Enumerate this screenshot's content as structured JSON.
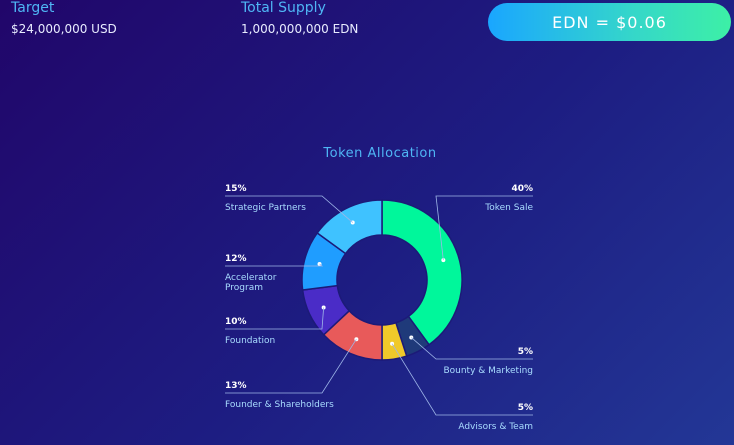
{
  "header": {
    "target_label": "Target",
    "target_value": "$24,000,000 USD",
    "supply_label": "Total Supply",
    "supply_value": "1,000,000,000 EDN",
    "price_button": "EDN = $0.06"
  },
  "chart_data": {
    "type": "pie",
    "donut": true,
    "title": "Token Allocation",
    "slices": [
      {
        "label": "Token Sale",
        "percent_label": "40%",
        "value": 40,
        "color": "#00f79b",
        "side": "right"
      },
      {
        "label": "Bounty & Marketing",
        "percent_label": "5%",
        "value": 5,
        "color": "#1f3a7a",
        "side": "right"
      },
      {
        "label": "Advisors & Team",
        "percent_label": "5%",
        "value": 5,
        "color": "#f0c92a",
        "side": "right"
      },
      {
        "label": "Founder & Shareholders",
        "percent_label": "13%",
        "value": 13,
        "color": "#e85a5a",
        "side": "left"
      },
      {
        "label": "Foundation",
        "percent_label": "10%",
        "value": 10,
        "color": "#4a2cc7",
        "side": "left"
      },
      {
        "label": "Accelerator Program",
        "label_lines": [
          "Accelerator",
          "Program"
        ],
        "percent_label": "12%",
        "value": 12,
        "color": "#1f9dff",
        "side": "left"
      },
      {
        "label": "Strategic Partners",
        "percent_label": "15%",
        "value": 15,
        "color": "#3fc2ff",
        "side": "left"
      }
    ]
  }
}
